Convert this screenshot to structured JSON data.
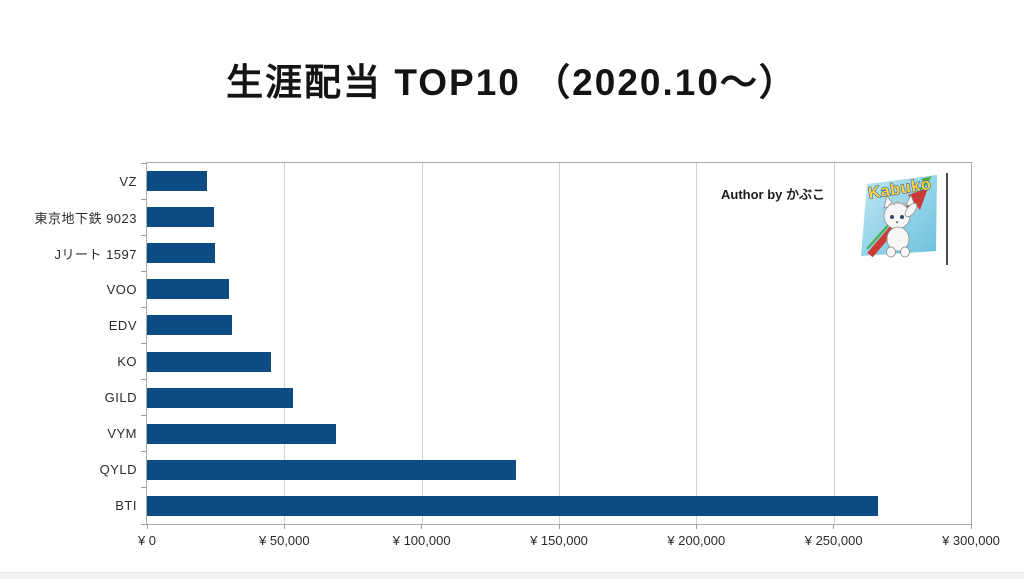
{
  "page": {
    "title": "生涯配当 TOP10 （2020.10～）"
  },
  "annotations": {
    "author": "Author by かぶこ",
    "logo_text": "Kabuko"
  },
  "colors": {
    "bar": "#0d4b85",
    "gridline": "#d2d2d2",
    "axis_border": "#ababab",
    "tick": "#9d9d9d",
    "title_text": "#141414",
    "label_text": "#2b2b2b",
    "logo_sky": "#8ed2ea",
    "logo_arrow_red": "#cc3a36",
    "logo_arrow_green": "#4fae4f",
    "logo_text_fill": "#ffd43a",
    "logo_text_stroke": "#1d4e9e"
  },
  "chart_data": {
    "type": "bar",
    "orientation": "horizontal",
    "title": "生涯配当 TOP10 （2020.10～）",
    "categories": [
      "VZ",
      "東京地下鉄 9023",
      "Jリート 1597",
      "VOO",
      "EDV",
      "KO",
      "GILD",
      "VYM",
      "QYLD",
      "BTI"
    ],
    "values": [
      22000,
      24300,
      24900,
      29900,
      31100,
      45300,
      53200,
      68700,
      134300,
      266000
    ],
    "xlabel": "",
    "ylabel": "",
    "xlim": [
      0,
      300000
    ],
    "x_tick_values": [
      0,
      50000,
      100000,
      150000,
      200000,
      250000,
      300000
    ],
    "x_tick_labels": [
      "¥ 0",
      "¥ 50,000",
      "¥ 100,000",
      "¥ 150,000",
      "¥ 200,000",
      "¥ 250,000",
      "¥ 300,000"
    ],
    "grid": true,
    "legend": false,
    "bar_color": "#0d4b85",
    "annotations": [
      "Author by かぶこ"
    ]
  }
}
